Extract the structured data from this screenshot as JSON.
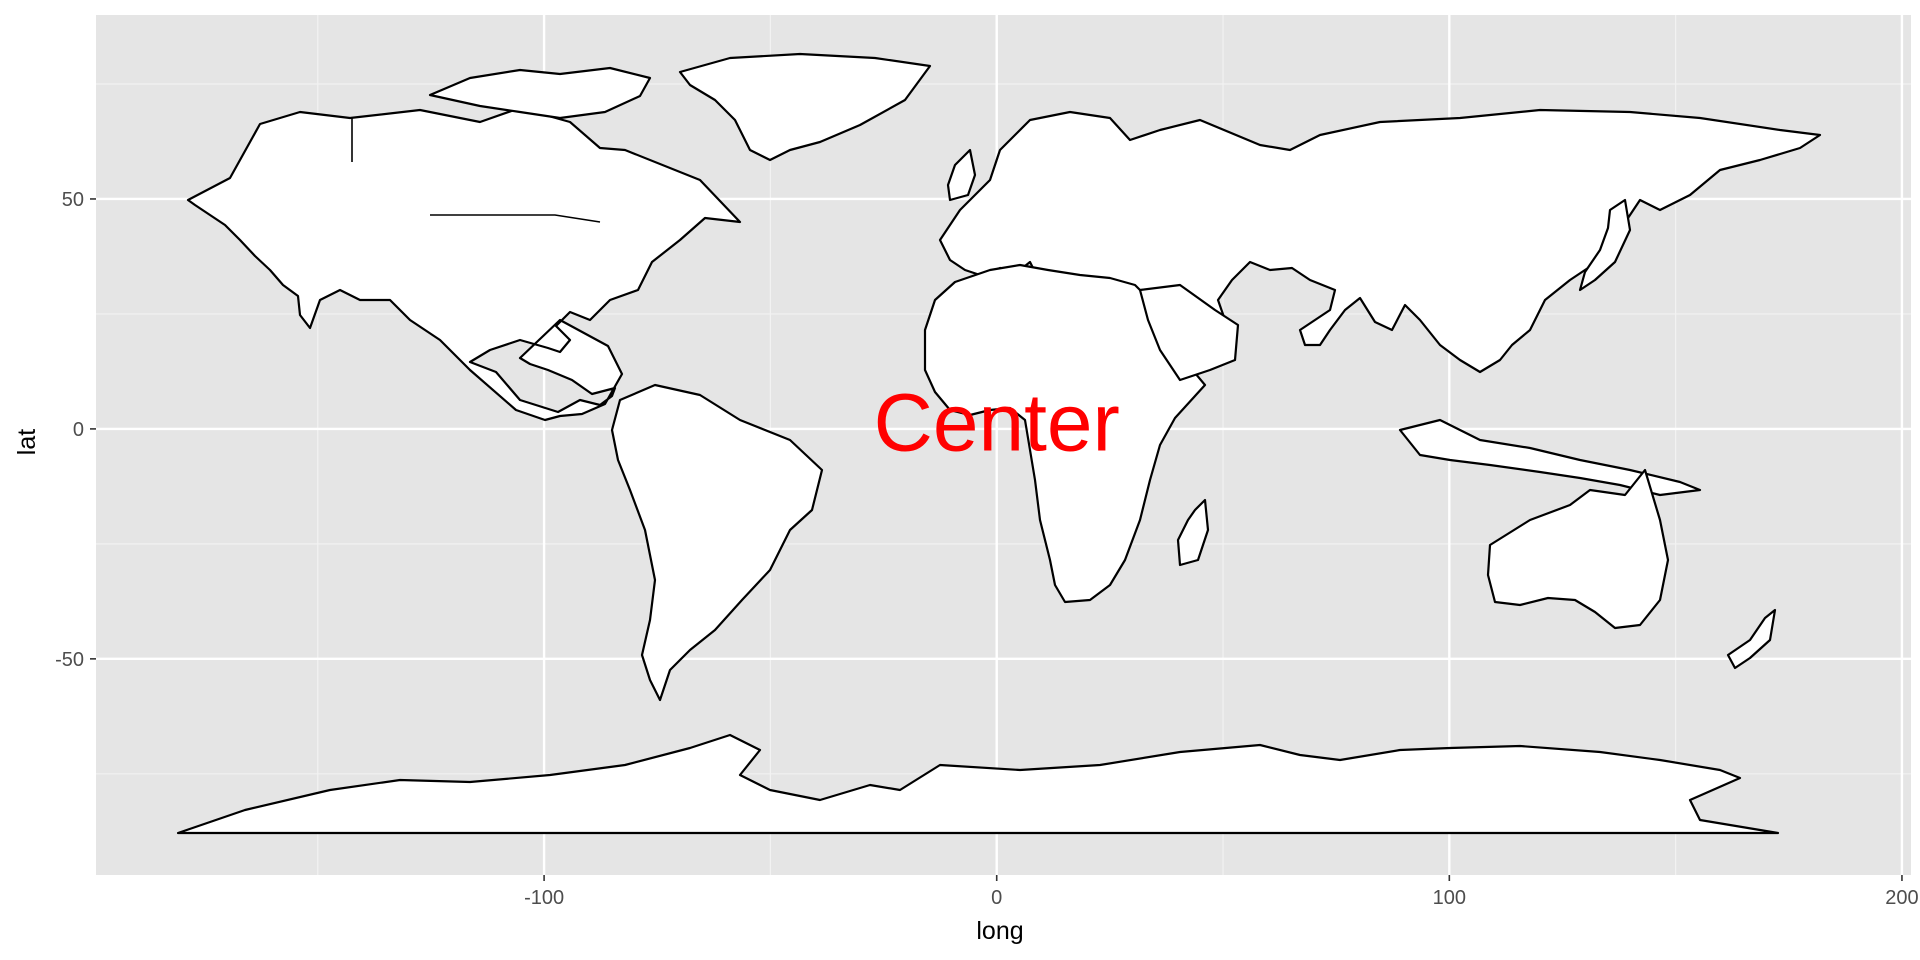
{
  "chart_data": {
    "type": "map",
    "xlabel": "long",
    "ylabel": "lat",
    "xlim": [
      -199,
      202
    ],
    "ylim": [
      -97,
      90
    ],
    "x_ticks": [
      -100,
      0,
      100,
      200
    ],
    "x_tick_labels": [
      "-100",
      "0",
      "100",
      "200"
    ],
    "y_ticks": [
      -50,
      0,
      50
    ],
    "y_tick_labels": [
      "-50",
      "0",
      "50"
    ],
    "x_minor": [
      -150,
      -50,
      50,
      150
    ],
    "y_minor": [
      -75,
      -25,
      25,
      75
    ],
    "grid": true,
    "panel_color": "#e5e5e5",
    "land_fill": "#ffffff",
    "outline_color": "#000000",
    "annotation": {
      "text": "Center",
      "x": 0,
      "y": 0,
      "color": "#ff0000"
    }
  }
}
